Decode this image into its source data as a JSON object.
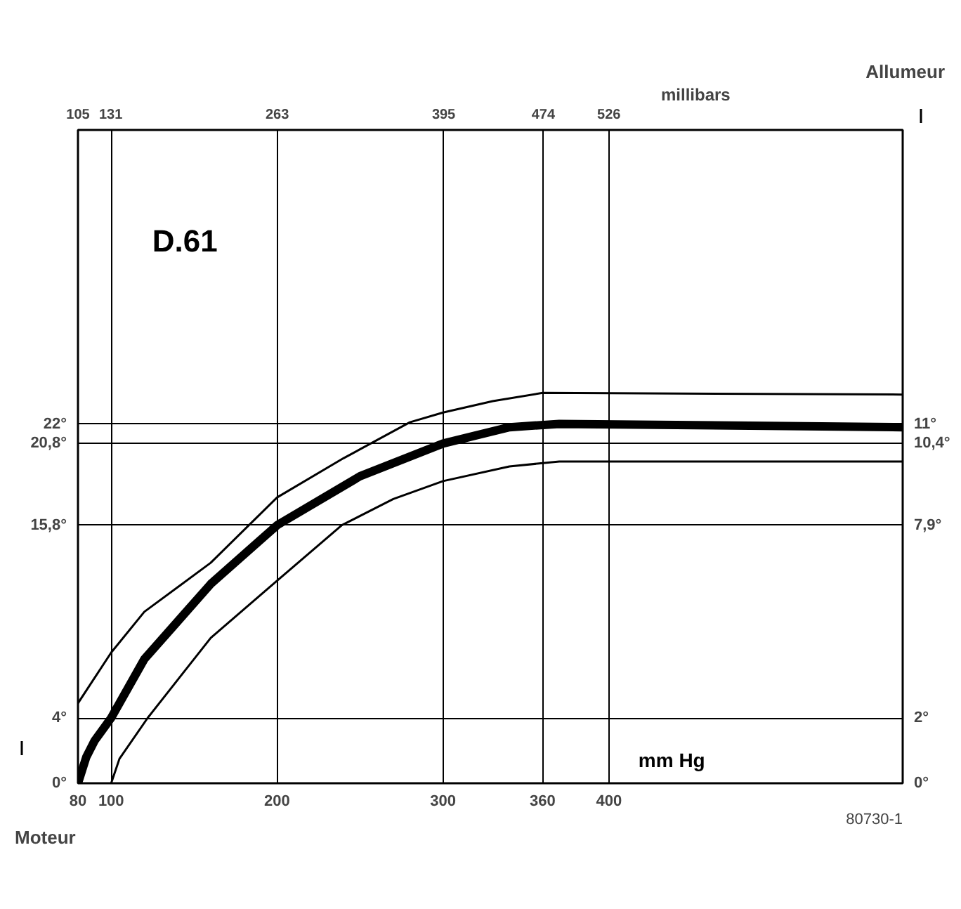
{
  "chart_data": {
    "type": "line",
    "title": "D.61",
    "xlabel": "mm Hg",
    "x2label": "millibars",
    "ylabel": "Moteur",
    "y2label": "Allumeur",
    "annotations": [
      "80730-1"
    ],
    "xlim": [
      80,
      577
    ],
    "xticks": [
      80,
      100,
      200,
      300,
      360,
      400
    ],
    "x2lim": [
      105,
      759
    ],
    "x2ticks": [
      105,
      131,
      263,
      395,
      474,
      526
    ],
    "ylim": [
      0,
      40
    ],
    "yticks": [
      {
        "value": 0,
        "label": "0°"
      },
      {
        "value": 4,
        "label": "4°"
      },
      {
        "value": 15.8,
        "label": "15,8°"
      },
      {
        "value": 20.8,
        "label": "20,8°"
      },
      {
        "value": 22,
        "label": "22°"
      }
    ],
    "y2lim": [
      0,
      20
    ],
    "y2ticks": [
      {
        "value": 0,
        "label": "0°"
      },
      {
        "value": 2,
        "label": "2°"
      },
      {
        "value": 7.9,
        "label": "7,9°"
      },
      {
        "value": 10.4,
        "label": "10,4°"
      },
      {
        "value": 11,
        "label": "11°"
      }
    ],
    "grid": true,
    "line_style": "solid",
    "series": [
      {
        "color": "#000000",
        "x": [
          80,
          100,
          120,
          160,
          200,
          240,
          280,
          300,
          330,
          360,
          577
        ],
        "values": [
          4.9,
          8.0,
          10.5,
          13.5,
          17.5,
          19.9,
          22.1,
          22.7,
          23.4,
          23.9,
          23.8
        ]
      },
      {
        "color": "#000000",
        "x": [
          80,
          85,
          90,
          100,
          120,
          160,
          200,
          250,
          300,
          340,
          370,
          577
        ],
        "values": [
          0,
          1.6,
          2.6,
          4,
          7.6,
          12.2,
          15.8,
          18.8,
          20.8,
          21.8,
          22,
          21.8
        ]
      },
      {
        "color": "#000000",
        "x": [
          100,
          105,
          122,
          160,
          200,
          239,
          270,
          300,
          340,
          370,
          577
        ],
        "values": [
          0,
          1.5,
          4,
          8.9,
          12.4,
          15.8,
          17.4,
          18.5,
          19.4,
          19.7,
          19.7
        ]
      }
    ]
  }
}
